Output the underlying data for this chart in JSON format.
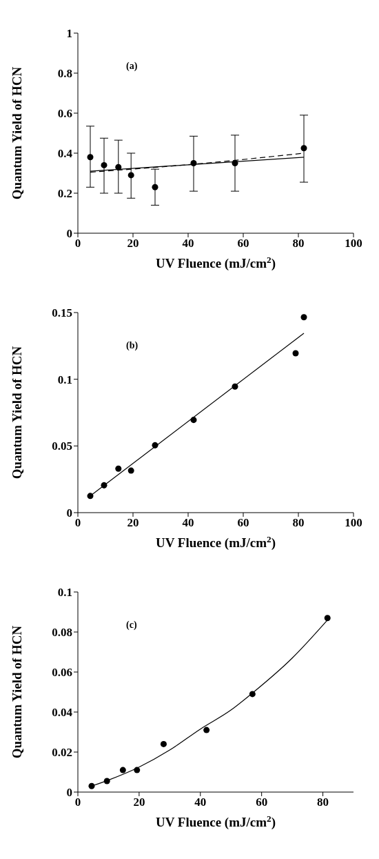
{
  "chart_data": [
    {
      "type": "scatter",
      "annotations": [
        "(a)"
      ],
      "xlabel": "UV Fluence (mJ/cm$^{2}$)",
      "ylabel": "Quantum Yield of HCN",
      "xlim": [
        0,
        100
      ],
      "xticks": [
        0,
        20,
        40,
        60,
        80,
        100
      ],
      "ylim": [
        0,
        1
      ],
      "yticks": [
        0,
        0.2,
        0.4,
        0.6,
        0.8,
        1
      ],
      "series": [
        {
          "color": "#000000",
          "marker": "circle",
          "x": [
            4.5,
            9.5,
            14.7,
            19.3,
            28,
            42,
            57,
            82
          ],
          "values": [
            0.38,
            0.34,
            0.33,
            0.29,
            0.23,
            0.35,
            0.35,
            0.425
          ],
          "errors": [
            [
              0.23,
              0.535
            ],
            [
              0.2,
              0.475
            ],
            [
              0.2,
              0.465
            ],
            [
              0.175,
              0.4
            ],
            [
              0.14,
              0.32
            ],
            [
              0.21,
              0.485
            ],
            [
              0.21,
              0.49
            ],
            [
              0.255,
              0.59
            ]
          ]
        },
        {
          "type": "line",
          "color": "#000000",
          "marker": "none",
          "line_style": "solid",
          "x": [
            4.5,
            82
          ],
          "values": [
            0.31,
            0.38
          ]
        },
        {
          "type": "line",
          "color": "#000000",
          "marker": "none",
          "line_style": "dashed",
          "x": [
            4.5,
            42,
            82
          ],
          "values": [
            0.305,
            0.345,
            0.4
          ]
        }
      ]
    },
    {
      "type": "scatter",
      "annotations": [
        "(b)"
      ],
      "xlabel": "UV Fluence (mJ/cm$^{2}$)",
      "ylabel": "Quantum Yield of HCN",
      "xlim": [
        0,
        100
      ],
      "xticks": [
        0,
        20,
        40,
        60,
        80,
        100
      ],
      "ylim": [
        0,
        0.15
      ],
      "yticks": [
        0,
        0.05,
        0.1,
        0.15
      ],
      "series": [
        {
          "color": "#000000",
          "marker": "circle",
          "x": [
            4.5,
            9.5,
            14.7,
            19.3,
            28,
            42,
            57,
            79,
            82
          ],
          "values": [
            0.0125,
            0.0205,
            0.033,
            0.0315,
            0.0505,
            0.0695,
            0.0945,
            0.1195,
            0.1465
          ]
        },
        {
          "type": "line",
          "color": "#000000",
          "marker": "none",
          "line_style": "solid",
          "x": [
            4.5,
            82
          ],
          "values": [
            0.0125,
            0.1345
          ]
        }
      ]
    },
    {
      "type": "scatter",
      "annotations": [
        "(c)"
      ],
      "xlabel": "UV Fluence (mJ/cm$^{2}$)",
      "ylabel": "Quantum Yield of HCN",
      "xlim": [
        0,
        90
      ],
      "xticks": [
        0,
        20,
        40,
        60,
        80
      ],
      "ylim": [
        0,
        0.1
      ],
      "yticks": [
        0,
        0.02,
        0.04,
        0.06,
        0.08,
        0.1
      ],
      "series": [
        {
          "color": "#000000",
          "marker": "circle",
          "x": [
            4.5,
            9.5,
            14.7,
            19.3,
            28,
            42,
            57,
            81.5
          ],
          "values": [
            0.003,
            0.0055,
            0.011,
            0.011,
            0.024,
            0.031,
            0.049,
            0.087
          ]
        },
        {
          "type": "line",
          "color": "#000000",
          "marker": "none",
          "line_style": "solid",
          "x": [
            4.5,
            10,
            20,
            30,
            40,
            50,
            57,
            70,
            81.5
          ],
          "values": [
            0.003,
            0.006,
            0.0125,
            0.021,
            0.0315,
            0.041,
            0.0495,
            0.067,
            0.086
          ]
        }
      ]
    }
  ]
}
